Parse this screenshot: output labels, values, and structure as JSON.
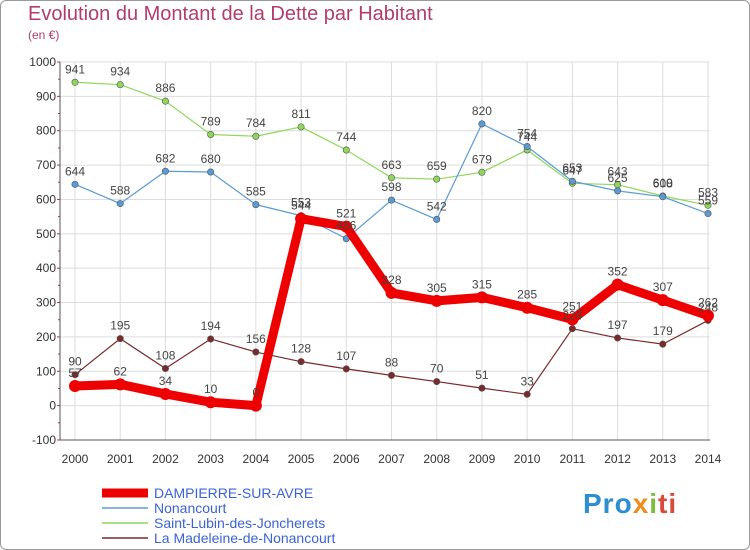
{
  "title": "Evolution du Montant de la Dette par Habitant",
  "subtitle": "(en €)",
  "logo": {
    "text": "Proxiti"
  },
  "colors": {
    "title": "#b03d6e",
    "axis": "#555555",
    "grid": "#dddddd"
  },
  "chart_data": {
    "type": "line",
    "x": [
      "2000",
      "2001",
      "2002",
      "2003",
      "2004",
      "2005",
      "2006",
      "2007",
      "2008",
      "2009",
      "2010",
      "2011",
      "2012",
      "2013",
      "2014"
    ],
    "ylim": [
      -100,
      1000
    ],
    "yticks": [
      "-100",
      "0",
      "100",
      "200",
      "300",
      "400",
      "500",
      "600",
      "700",
      "800",
      "900",
      "1000"
    ],
    "ytick_values": [
      -100,
      0,
      100,
      200,
      300,
      400,
      500,
      600,
      700,
      800,
      900,
      1000
    ],
    "grid": true,
    "legend_position": "bottom-left",
    "series": [
      {
        "name": "DAMPIERRE-SUR-AVRE",
        "color": "#ee0000",
        "values": [
          57,
          62,
          34,
          10,
          0,
          544,
          521,
          328,
          305,
          315,
          285,
          251,
          352,
          307,
          262
        ],
        "labels": [
          "57",
          "62",
          "34",
          "10",
          "0",
          "544",
          "521",
          "328",
          "305",
          "315",
          "285",
          "251",
          "352",
          "307",
          "262"
        ]
      },
      {
        "name": "Nonancourt",
        "color": "#5b9bd5",
        "values": [
          644,
          588,
          682,
          680,
          585,
          553,
          486,
          598,
          542,
          820,
          754,
          653,
          625,
          608,
          559
        ],
        "labels": [
          "644",
          "588",
          "682",
          "680",
          "585",
          "553",
          "486",
          "598",
          "542",
          "820",
          "754",
          "653",
          "625",
          "608",
          "559"
        ]
      },
      {
        "name": "Saint-Lubin-des-Joncherets",
        "color": "#8fd65a",
        "values": [
          941,
          934,
          886,
          789,
          784,
          811,
          744,
          663,
          659,
          679,
          744,
          647,
          643,
          610,
          583
        ],
        "labels": [
          "941",
          "934",
          "886",
          "789",
          "784",
          "811",
          "744",
          "663",
          "659",
          "679",
          "744",
          "647",
          "643",
          "610",
          "583"
        ]
      },
      {
        "name": "La Madeleine-de-Nonancourt",
        "color": "#7a2a2a",
        "values": [
          90,
          195,
          108,
          194,
          156,
          128,
          107,
          88,
          70,
          51,
          33,
          224,
          197,
          179,
          248
        ],
        "labels": [
          "90",
          "195",
          "108",
          "194",
          "156",
          "128",
          "107",
          "88",
          "70",
          "51",
          "33",
          "224",
          "197",
          "179",
          "248"
        ]
      }
    ]
  }
}
